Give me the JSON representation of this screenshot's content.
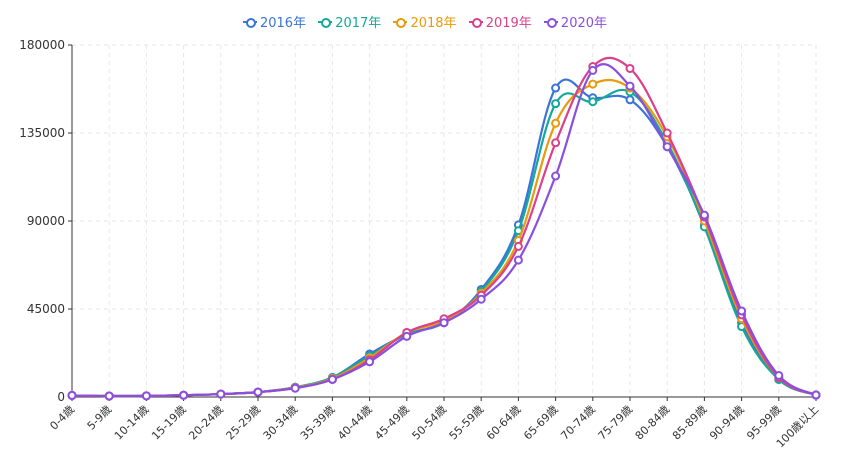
{
  "chart_data": {
    "type": "line",
    "categories": [
      "0-4歳",
      "5-9歳",
      "10-14歳",
      "15-19歳",
      "20-24歳",
      "25-29歳",
      "30-34歳",
      "35-39歳",
      "40-44歳",
      "45-49歳",
      "50-54歳",
      "55-59歳",
      "60-64歳",
      "65-69歳",
      "70-74歳",
      "75-79歳",
      "80-84歳",
      "85-89歳",
      "90-94歳",
      "95-99歳",
      "100歳以上"
    ],
    "ylim": [
      0,
      180000
    ],
    "yticks": [
      "0",
      "45000",
      "90000",
      "135000",
      "180000"
    ],
    "grid": true,
    "legend_position": "top-center",
    "series": [
      {
        "name": "2016年",
        "color": "#3b73d6",
        "values": [
          800,
          500,
          600,
          900,
          1500,
          2500,
          5000,
          10000,
          22000,
          32000,
          38000,
          55000,
          88000,
          158000,
          153000,
          152000,
          128000,
          88000,
          38000,
          9000,
          1000
        ]
      },
      {
        "name": "2017年",
        "color": "#12a99c",
        "values": [
          800,
          500,
          600,
          900,
          1500,
          2500,
          5000,
          10000,
          21000,
          32000,
          38000,
          54000,
          85000,
          150000,
          151000,
          156000,
          130000,
          87000,
          36000,
          9000,
          1000
        ]
      },
      {
        "name": "2018年",
        "color": "#e89b0c",
        "values": [
          800,
          500,
          600,
          900,
          1500,
          2500,
          4800,
          9500,
          20000,
          33000,
          39000,
          53000,
          80000,
          140000,
          160000,
          158000,
          133000,
          90000,
          40000,
          10000,
          1000
        ]
      },
      {
        "name": "2019年",
        "color": "#d9418c",
        "values": [
          800,
          500,
          600,
          900,
          1500,
          2500,
          4600,
          9000,
          19000,
          33000,
          40000,
          52000,
          77000,
          130000,
          169000,
          168000,
          135000,
          92000,
          42000,
          10000,
          1000
        ]
      },
      {
        "name": "2020年",
        "color": "#8a4fde",
        "values": [
          800,
          500,
          600,
          900,
          1500,
          2500,
          4500,
          9000,
          18000,
          31000,
          38000,
          50000,
          70000,
          113000,
          167000,
          159000,
          128000,
          93000,
          44000,
          11000,
          1000
        ]
      }
    ]
  }
}
